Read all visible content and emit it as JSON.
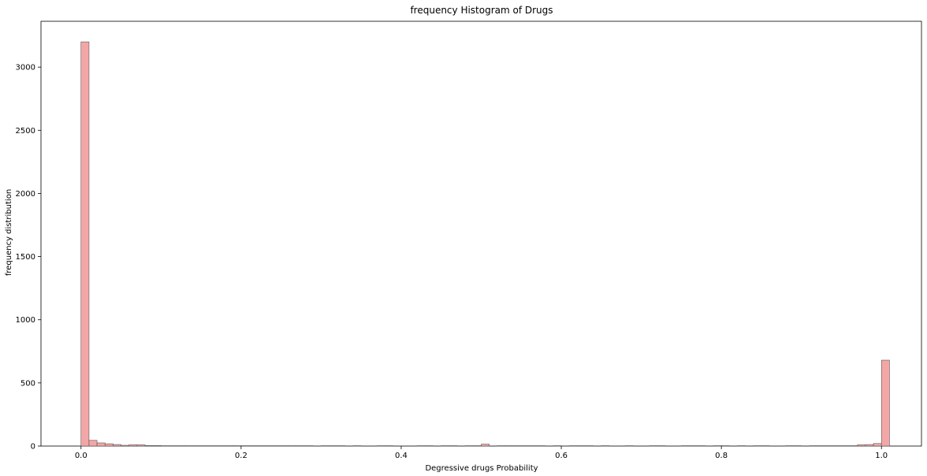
{
  "chart_data": {
    "type": "bar",
    "title": "frequency Histogram of Drugs",
    "xlabel": "Degressive drugs Probability",
    "ylabel": "frequency distribution",
    "xlim": [
      -0.05,
      1.05
    ],
    "ylim": [
      0,
      3363
    ],
    "xticks": [
      "0.0",
      "0.2",
      "0.4",
      "0.6",
      "0.8",
      "1.0"
    ],
    "xtick_values": [
      0.0,
      0.2,
      0.4,
      0.6,
      0.8,
      1.0
    ],
    "yticks": [
      "0",
      "500",
      "1000",
      "1500",
      "2000",
      "2500",
      "3000"
    ],
    "ytick_values": [
      0,
      500,
      1000,
      1500,
      2000,
      2500,
      3000
    ],
    "bin_width": 0.01,
    "bin_start": 0.0,
    "values": [
      3200,
      45,
      25,
      18,
      12,
      6,
      10,
      10,
      4,
      4,
      3,
      3,
      3,
      3,
      3,
      3,
      3,
      3,
      3,
      3,
      3,
      3,
      3,
      3,
      3,
      3,
      3,
      3,
      3,
      0,
      3,
      3,
      3,
      0,
      3,
      0,
      0,
      3,
      3,
      0,
      0,
      0,
      3,
      3,
      0,
      3,
      3,
      0,
      3,
      3,
      15,
      0,
      3,
      3,
      3,
      3,
      3,
      3,
      0,
      3,
      0,
      3,
      3,
      3,
      0,
      3,
      0,
      0,
      3,
      0,
      0,
      3,
      3,
      0,
      0,
      3,
      3,
      3,
      0,
      3,
      3,
      0,
      3,
      0,
      3,
      3,
      0,
      0,
      3,
      3,
      0,
      3,
      3,
      3,
      3,
      3,
      3,
      10,
      12,
      20,
      680
    ],
    "bar_color": "#f4a6a6",
    "bar_edge_color": "#555555"
  }
}
